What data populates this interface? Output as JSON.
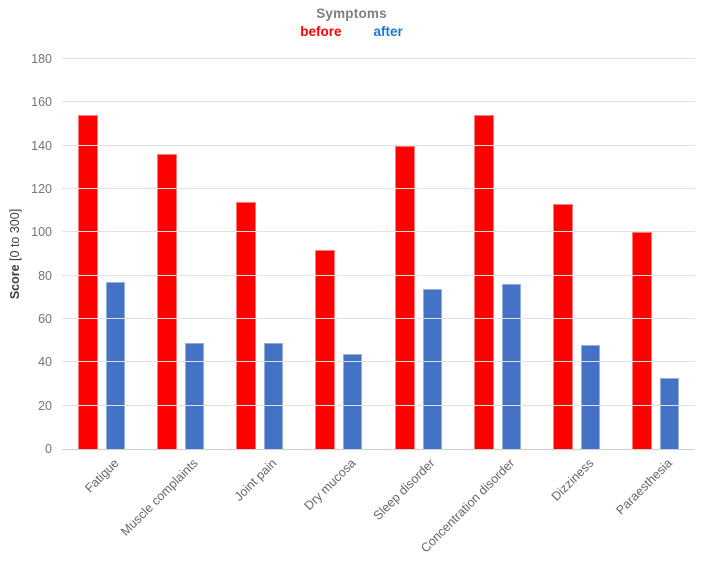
{
  "chart": {
    "title": "Symptoms",
    "legend": {
      "before": {
        "label": "before",
        "color": "#ff0000"
      },
      "after": {
        "label": "after",
        "color": "#1878d2"
      }
    },
    "y_axis_title_bold": "Score",
    "y_axis_title_rest": " [0 to 300]"
  },
  "colors": {
    "grid": "#e2e2e2",
    "axis_line": "#d0d0d0",
    "tick_text": "#757575",
    "label_text": "#666666",
    "title_text": "#7f7f7f",
    "before_bar": "#ff0000",
    "after_bar": "#4472c4"
  },
  "chart_data": {
    "type": "bar",
    "title": "Symptoms",
    "categories": [
      "Fatigue",
      "Muscle complaints",
      "Joint pain",
      "Dry mucosa",
      "Sleep disorder",
      "Concentration disorder",
      "Dizziness",
      "Paraesthesia"
    ],
    "series": [
      {
        "name": "before",
        "color": "#ff0000",
        "values": [
          154,
          136,
          114,
          92,
          140,
          154,
          113,
          100
        ]
      },
      {
        "name": "after",
        "color": "#4472c4",
        "values": [
          77,
          49,
          49,
          44,
          74,
          76,
          48,
          33
        ]
      }
    ],
    "xlabel": "",
    "ylabel": "Score [0 to 300]",
    "ylim": [
      0,
      180
    ],
    "ytick_step": 20,
    "grid": true,
    "legend_position": "top",
    "xlabel_rotation_deg": 45
  }
}
